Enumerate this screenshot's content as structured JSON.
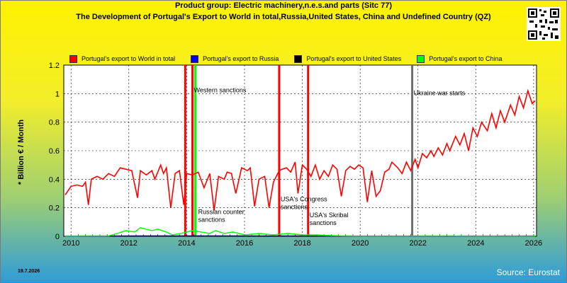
{
  "header": {
    "title": "Product group: Electric machinery,n.e.s.and parts (Sitc 77)",
    "subtitle": "The Development of Portugal's Export to World in total,Russia,United States, China and Undefined Country (QZ)"
  },
  "footer": {
    "date": "19.7.2026",
    "source": "Source: Eurostat"
  },
  "colors": {
    "world": "#ff0000",
    "russia": "#0000ff",
    "usa": "#000000",
    "china": "#00ff00",
    "marker_gray": "#6e6e6e"
  },
  "chart_data": {
    "type": "line",
    "ylabel": "* Billion € / Month",
    "ylim": [
      0,
      1.2
    ],
    "xlim": [
      2009.75,
      2026.1
    ],
    "yticks": [
      "0",
      "0.2",
      "0.4",
      "0.6",
      "0.8",
      "1",
      "1.2"
    ],
    "xticks": [
      "2010",
      "2012",
      "2014",
      "2016",
      "2018",
      "2020",
      "2022",
      "2024",
      "2026"
    ],
    "grid": true,
    "legend_position": "top",
    "series": [
      {
        "name": "Portugal's export to World in total",
        "color": "#ff0000",
        "points": [
          [
            2009.8,
            0.29
          ],
          [
            2010.0,
            0.35
          ],
          [
            2010.2,
            0.36
          ],
          [
            2010.4,
            0.35
          ],
          [
            2010.5,
            0.38
          ],
          [
            2010.6,
            0.22
          ],
          [
            2010.7,
            0.4
          ],
          [
            2010.9,
            0.42
          ],
          [
            2011.1,
            0.4
          ],
          [
            2011.3,
            0.44
          ],
          [
            2011.5,
            0.42
          ],
          [
            2011.7,
            0.48
          ],
          [
            2011.9,
            0.47
          ],
          [
            2012.1,
            0.46
          ],
          [
            2012.3,
            0.27
          ],
          [
            2012.4,
            0.46
          ],
          [
            2012.6,
            0.43
          ],
          [
            2012.8,
            0.46
          ],
          [
            2012.9,
            0.4
          ],
          [
            2013.1,
            0.5
          ],
          [
            2013.2,
            0.44
          ],
          [
            2013.3,
            0.48
          ],
          [
            2013.45,
            0.2
          ],
          [
            2013.6,
            0.44
          ],
          [
            2013.75,
            0.46
          ],
          [
            2013.9,
            0.22
          ],
          [
            2014.0,
            0.44
          ],
          [
            2014.2,
            0.43
          ],
          [
            2014.4,
            0.45
          ],
          [
            2014.6,
            0.34
          ],
          [
            2014.8,
            0.44
          ],
          [
            2014.95,
            0.18
          ],
          [
            2015.1,
            0.42
          ],
          [
            2015.3,
            0.4
          ],
          [
            2015.4,
            0.45
          ],
          [
            2015.55,
            0.44
          ],
          [
            2015.7,
            0.3
          ],
          [
            2015.9,
            0.48
          ],
          [
            2016.1,
            0.46
          ],
          [
            2016.2,
            0.48
          ],
          [
            2016.35,
            0.21
          ],
          [
            2016.5,
            0.4
          ],
          [
            2016.7,
            0.42
          ],
          [
            2016.85,
            0.2
          ],
          [
            2017.0,
            0.38
          ],
          [
            2017.2,
            0.46
          ],
          [
            2017.3,
            0.47
          ],
          [
            2017.45,
            0.48
          ],
          [
            2017.6,
            0.45
          ],
          [
            2017.75,
            0.52
          ],
          [
            2017.85,
            0.3
          ],
          [
            2018.0,
            0.5
          ],
          [
            2018.15,
            0.47
          ],
          [
            2018.3,
            0.42
          ],
          [
            2018.45,
            0.5
          ],
          [
            2018.6,
            0.4
          ],
          [
            2018.75,
            0.46
          ],
          [
            2018.9,
            0.42
          ],
          [
            2019.05,
            0.5
          ],
          [
            2019.2,
            0.47
          ],
          [
            2019.35,
            0.28
          ],
          [
            2019.5,
            0.46
          ],
          [
            2019.65,
            0.49
          ],
          [
            2019.8,
            0.47
          ],
          [
            2019.95,
            0.5
          ],
          [
            2020.1,
            0.48
          ],
          [
            2020.25,
            0.24
          ],
          [
            2020.4,
            0.46
          ],
          [
            2020.55,
            0.28
          ],
          [
            2020.7,
            0.32
          ],
          [
            2020.85,
            0.45
          ],
          [
            2021.0,
            0.47
          ],
          [
            2021.1,
            0.52
          ],
          [
            2021.3,
            0.48
          ],
          [
            2021.45,
            0.44
          ],
          [
            2021.6,
            0.52
          ],
          [
            2021.75,
            0.46
          ],
          [
            2021.9,
            0.54
          ],
          [
            2022.0,
            0.48
          ],
          [
            2022.15,
            0.58
          ],
          [
            2022.3,
            0.55
          ],
          [
            2022.45,
            0.6
          ],
          [
            2022.55,
            0.56
          ],
          [
            2022.7,
            0.62
          ],
          [
            2022.85,
            0.57
          ],
          [
            2023.0,
            0.65
          ],
          [
            2023.1,
            0.6
          ],
          [
            2023.3,
            0.7
          ],
          [
            2023.45,
            0.64
          ],
          [
            2023.6,
            0.72
          ],
          [
            2023.75,
            0.6
          ],
          [
            2023.9,
            0.76
          ],
          [
            2024.05,
            0.7
          ],
          [
            2024.2,
            0.8
          ],
          [
            2024.4,
            0.74
          ],
          [
            2024.55,
            0.86
          ],
          [
            2024.7,
            0.76
          ],
          [
            2024.85,
            0.88
          ],
          [
            2025.0,
            0.8
          ],
          [
            2025.2,
            0.92
          ],
          [
            2025.35,
            0.85
          ],
          [
            2025.5,
            0.98
          ],
          [
            2025.65,
            0.9
          ],
          [
            2025.8,
            1.02
          ],
          [
            2025.95,
            0.93
          ],
          [
            2026.05,
            0.95
          ]
        ]
      },
      {
        "name": "Portugal's export to Russia",
        "color": "#0000ff",
        "points": [
          [
            2009.8,
            0.001
          ],
          [
            2014.0,
            0.003
          ],
          [
            2018.0,
            0.002
          ],
          [
            2022.0,
            0.001
          ],
          [
            2026.05,
            0.002
          ]
        ]
      },
      {
        "name": "Portugal's export to United States",
        "color": "#000000",
        "points": [
          [
            2009.8,
            0.002
          ],
          [
            2026.05,
            0.002
          ]
        ]
      },
      {
        "name": "Portugal's export to China",
        "color": "#00ff00",
        "points": [
          [
            2009.8,
            0.002
          ],
          [
            2011.3,
            0.003
          ],
          [
            2011.6,
            0.02
          ],
          [
            2011.9,
            0.04
          ],
          [
            2012.2,
            0.03
          ],
          [
            2012.4,
            0.06
          ],
          [
            2012.6,
            0.05
          ],
          [
            2012.8,
            0.04
          ],
          [
            2013.0,
            0.05
          ],
          [
            2013.3,
            0.03
          ],
          [
            2013.5,
            0.01
          ],
          [
            2013.8,
            0.02
          ],
          [
            2014.0,
            0.03
          ],
          [
            2014.2,
            0.04
          ],
          [
            2014.5,
            0.03
          ],
          [
            2014.8,
            0.02
          ],
          [
            2015.0,
            0.04
          ],
          [
            2015.3,
            0.02
          ],
          [
            2015.6,
            0.03
          ],
          [
            2016.0,
            0.01
          ],
          [
            2016.5,
            0.02
          ],
          [
            2017.0,
            0.01
          ],
          [
            2017.5,
            0.02
          ],
          [
            2018.0,
            0.01
          ],
          [
            2018.5,
            0.01
          ],
          [
            2019.0,
            0.005
          ],
          [
            2019.5,
            0.003
          ],
          [
            2020.0,
            0.002
          ],
          [
            2021.0,
            0.002
          ],
          [
            2023.0,
            0.003
          ],
          [
            2024.0,
            0.002
          ],
          [
            2026.05,
            0.002
          ]
        ]
      }
    ],
    "events": [
      {
        "x": 2013.95,
        "color": "#ff0000",
        "label_lines": []
      },
      {
        "x": 2014.2,
        "color": "#ff0000",
        "label_lines": [
          "Western sanctions"
        ]
      },
      {
        "x": 2014.3,
        "color": "#00ff00",
        "label_lines": [
          "Russian counter",
          "sanctions"
        ]
      },
      {
        "x": 2017.2,
        "color": "#ff0000",
        "label_lines": [
          "USA's Congress",
          "sanctions"
        ]
      },
      {
        "x": 2018.2,
        "color": "#ff0000",
        "label_lines": [
          "USA's Skribal",
          "sanctions"
        ]
      },
      {
        "x": 2021.8,
        "color": "#6e6e6e",
        "label_lines": [
          "Ukraine war starts"
        ]
      }
    ]
  }
}
